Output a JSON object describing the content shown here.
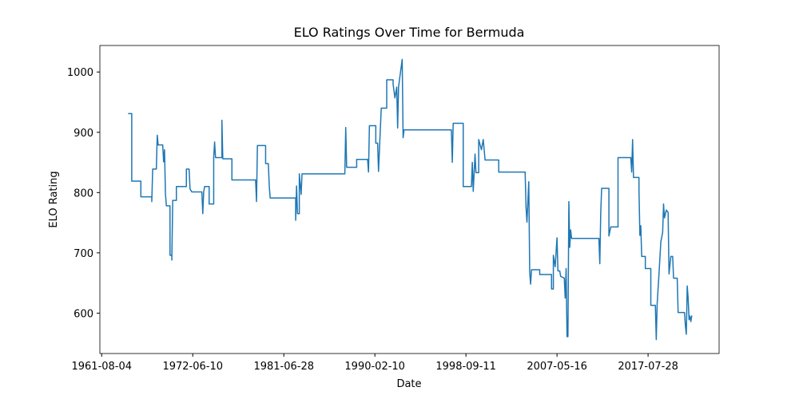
{
  "chart_data": {
    "type": "line",
    "title": "ELO Ratings Over Time for Bermuda",
    "x_label": "Date",
    "y_label": "ELO Rating",
    "color": "#1f77b4",
    "xlim": [
      -2,
      678
    ],
    "ylim": [
      533,
      1044
    ],
    "xticks": [
      {
        "value": 0,
        "label": "1961-08-04"
      },
      {
        "value": 100,
        "label": "1972-06-10"
      },
      {
        "value": 200,
        "label": "1981-06-28"
      },
      {
        "value": 300,
        "label": "1990-02-10"
      },
      {
        "value": 400,
        "label": "1998-09-11"
      },
      {
        "value": 500,
        "label": "2007-05-16"
      },
      {
        "value": 600,
        "label": "2017-07-28"
      }
    ],
    "yticks": [
      600,
      700,
      800,
      900,
      1000
    ],
    "x": [
      29,
      33,
      33,
      43,
      43,
      55,
      55,
      56,
      60,
      61,
      62,
      67,
      68,
      69,
      70,
      71,
      75,
      75,
      77,
      77,
      78,
      82,
      82,
      93,
      93,
      96,
      97,
      99,
      110,
      111,
      112,
      113,
      118,
      118,
      123,
      123,
      124,
      125,
      132,
      132,
      133,
      143,
      143,
      169,
      170,
      171,
      180,
      180,
      183,
      184,
      185,
      213,
      213,
      214,
      215,
      217,
      217,
      219,
      220,
      267,
      268,
      269,
      280,
      280,
      292,
      293,
      294,
      301,
      301,
      303,
      304,
      305,
      307,
      313,
      313,
      320,
      320,
      322,
      324,
      325,
      326,
      327,
      330,
      331,
      332,
      384,
      385,
      386,
      397,
      397,
      406,
      407,
      408,
      410,
      411,
      414,
      414,
      417,
      419,
      421,
      436,
      436,
      465,
      466,
      467,
      469,
      470,
      471,
      472,
      481,
      481,
      494,
      494,
      496,
      496,
      498,
      500,
      501,
      503,
      504,
      508,
      509,
      510,
      511,
      512,
      513,
      514,
      515,
      516,
      546,
      547,
      548,
      549,
      557,
      557,
      559,
      567,
      567,
      581,
      582,
      583,
      584,
      590,
      590,
      591,
      592,
      593,
      597,
      597,
      603,
      603,
      608,
      609,
      610,
      612,
      614,
      616,
      617,
      618,
      620,
      622,
      623,
      625,
      627,
      628,
      632,
      633,
      640,
      641,
      642,
      643,
      644,
      645,
      646,
      647,
      648
    ],
    "values": [
      931,
      931,
      819,
      819,
      793,
      793,
      785,
      839,
      839,
      895,
      879,
      879,
      851,
      871,
      798,
      778,
      778,
      696,
      696,
      688,
      787,
      787,
      810,
      810,
      839,
      839,
      806,
      801,
      801,
      765,
      801,
      810,
      810,
      781,
      781,
      858,
      884,
      858,
      858,
      920,
      856,
      856,
      821,
      821,
      785,
      878,
      878,
      848,
      848,
      811,
      791,
      791,
      754,
      811,
      765,
      765,
      831,
      797,
      831,
      831,
      908,
      842,
      842,
      855,
      855,
      834,
      911,
      911,
      882,
      882,
      835,
      871,
      940,
      940,
      987,
      987,
      980,
      957,
      975,
      907,
      975,
      987,
      1021,
      891,
      904,
      904,
      850,
      915,
      915,
      810,
      810,
      850,
      802,
      864,
      833,
      833,
      888,
      871,
      888,
      854,
      854,
      834,
      834,
      775,
      751,
      818,
      669,
      648,
      672,
      672,
      664,
      664,
      640,
      640,
      696,
      677,
      725,
      670,
      670,
      661,
      658,
      625,
      674,
      561,
      561,
      785,
      709,
      738,
      724,
      724,
      682,
      765,
      807,
      807,
      728,
      743,
      743,
      858,
      858,
      834,
      888,
      825,
      825,
      805,
      729,
      745,
      694,
      694,
      674,
      674,
      613,
      613,
      556,
      616,
      665,
      718,
      734,
      781,
      758,
      771,
      767,
      665,
      694,
      694,
      658,
      658,
      601,
      601,
      579,
      565,
      645,
      625,
      589,
      595,
      586,
      596
    ]
  }
}
